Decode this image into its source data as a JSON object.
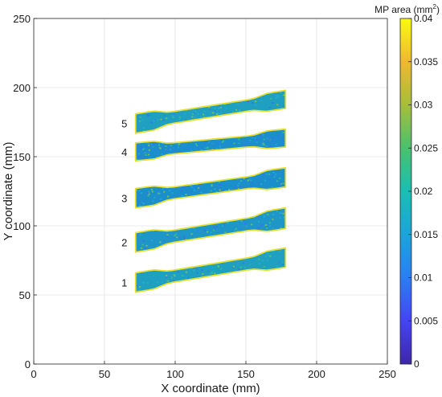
{
  "chart_data": {
    "type": "heatmap",
    "title": "",
    "xlabel": "X coordinate (mm)",
    "ylabel": "Y coordinate (mm)",
    "xlim": [
      0,
      250
    ],
    "ylim": [
      0,
      250
    ],
    "x_ticks": [
      "0",
      "50",
      "100",
      "150",
      "200",
      "250"
    ],
    "y_ticks": [
      "0",
      "50",
      "100",
      "150",
      "200",
      "250"
    ],
    "grid": true,
    "colorbar": {
      "label": "MP area (mm",
      "label_superscript": "2",
      "label_suffix": ")",
      "range": [
        0,
        0.04
      ],
      "ticks": [
        "0",
        "0.005",
        "0.01",
        "0.015",
        "0.02",
        "0.025",
        "0.03",
        "0.035",
        "0.04"
      ],
      "colormap": [
        "#3e26a8",
        "#4544f6",
        "#2a7ef4",
        "#1aa5da",
        "#18bfb3",
        "#4ac16d",
        "#a6be3b",
        "#efb92e",
        "#f9fb0e"
      ]
    },
    "specimens": [
      {
        "label": "1",
        "x_range": [
          72,
          178
        ],
        "y_left": [
          52,
          66
        ],
        "y_right": [
          70,
          84
        ],
        "dominant_color": "#1fa0c0"
      },
      {
        "label": "2",
        "x_range": [
          72,
          178
        ],
        "y_left": [
          81,
          95
        ],
        "y_right": [
          98,
          113
        ],
        "dominant_color": "#1e96c8"
      },
      {
        "label": "3",
        "x_range": [
          72,
          178
        ],
        "y_left": [
          113,
          127
        ],
        "y_right": [
          128,
          142
        ],
        "dominant_color": "#1a8fcc"
      },
      {
        "label": "4",
        "x_range": [
          72,
          178
        ],
        "y_left": [
          147,
          160
        ],
        "y_right": [
          157,
          170
        ],
        "dominant_color": "#1a8fcc"
      },
      {
        "label": "5",
        "x_range": [
          72,
          178
        ],
        "y_left": [
          167,
          181
        ],
        "y_right": [
          185,
          198
        ],
        "dominant_color": "#20a0c0"
      }
    ]
  }
}
